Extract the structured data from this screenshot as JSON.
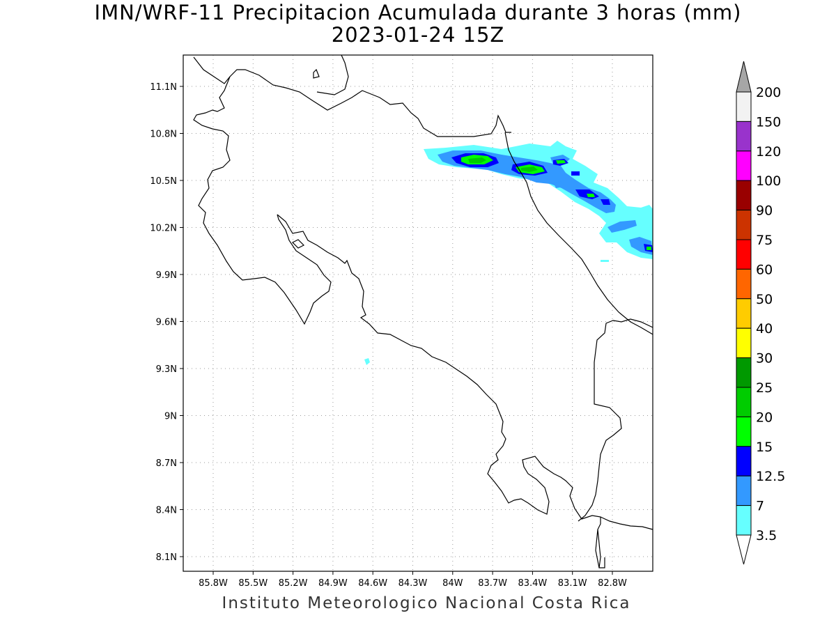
{
  "title": {
    "line1": "IMN/WRF-11 Precipitacion Acumulada durante 3 horas (mm)",
    "line2": "2023-01-24 15Z"
  },
  "footer": "Instituto Meteorologico Nacional Costa Rica",
  "map": {
    "lon_range": [
      -86.1,
      -82.6
    ],
    "lat_range": [
      8.0,
      11.35
    ],
    "lon_ticks": [
      "85.8W",
      "85.5W",
      "85.2W",
      "84.9W",
      "84.6W",
      "84.3W",
      "84W",
      "83.7W",
      "83.4W",
      "83.1W",
      "82.8W"
    ],
    "lat_ticks": [
      "11.1N",
      "10.8N",
      "10.5N",
      "10.2N",
      "9.9N",
      "9.6N",
      "9.3N",
      "9N",
      "8.7N",
      "8.4N",
      "8.1N"
    ],
    "grid": "dotted"
  },
  "colorbar": {
    "labels": [
      "200",
      "150",
      "120",
      "100",
      "90",
      "75",
      "60",
      "50",
      "40",
      "30",
      "25",
      "20",
      "15",
      "12.5",
      "7",
      "3.5"
    ],
    "colors": [
      "#f2f2f2",
      "#9933cc",
      "#ff00ff",
      "#990000",
      "#cc3300",
      "#ff0000",
      "#ff6600",
      "#ffcc00",
      "#ffff00",
      "#009900",
      "#00cc00",
      "#00ff00",
      "#0000ff",
      "#3399ff",
      "#66ffff"
    ],
    "over_color": "#a6a6a6",
    "under_color": "#ffffff"
  },
  "precip_fields": [
    {
      "level": "3.5",
      "color": "#66ffff"
    },
    {
      "level": "7",
      "color": "#3399ff"
    },
    {
      "level": "12.5",
      "color": "#0000ff"
    },
    {
      "level": "15",
      "color": "#00ff00"
    },
    {
      "level": "20",
      "color": "#00cc00"
    }
  ]
}
